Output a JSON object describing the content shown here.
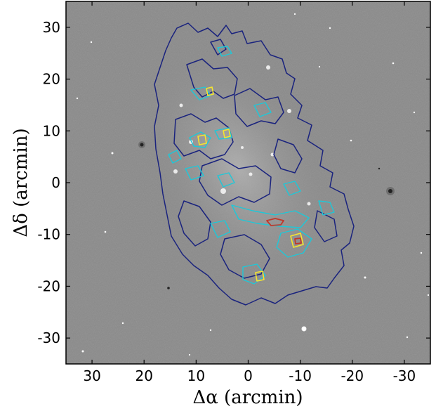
{
  "figure": {
    "x_axis": {
      "label": "Δα (arcmin)",
      "ticks": [
        {
          "value": 30,
          "label": "30"
        },
        {
          "value": 20,
          "label": "20"
        },
        {
          "value": 10,
          "label": "10"
        },
        {
          "value": 0,
          "label": "0"
        },
        {
          "value": -10,
          "label": "-10"
        },
        {
          "value": -20,
          "label": "-20"
        },
        {
          "value": -30,
          "label": "-30"
        }
      ],
      "range": [
        35,
        -35
      ]
    },
    "y_axis": {
      "label": "Δδ (arcmin)",
      "ticks": [
        {
          "value": 30,
          "label": "30"
        },
        {
          "value": 20,
          "label": "20"
        },
        {
          "value": 10,
          "label": "10"
        },
        {
          "value": 0,
          "label": "0"
        },
        {
          "value": -10,
          "label": "-10"
        },
        {
          "value": -20,
          "label": "-20"
        },
        {
          "value": -30,
          "label": "-30"
        }
      ],
      "range": [
        -35,
        35
      ]
    },
    "image": {
      "background": "#8a8a8a",
      "contour_colors": [
        "#1a237e",
        "#1ec8d8",
        "#f5e52e",
        "#c0392b"
      ]
    }
  }
}
